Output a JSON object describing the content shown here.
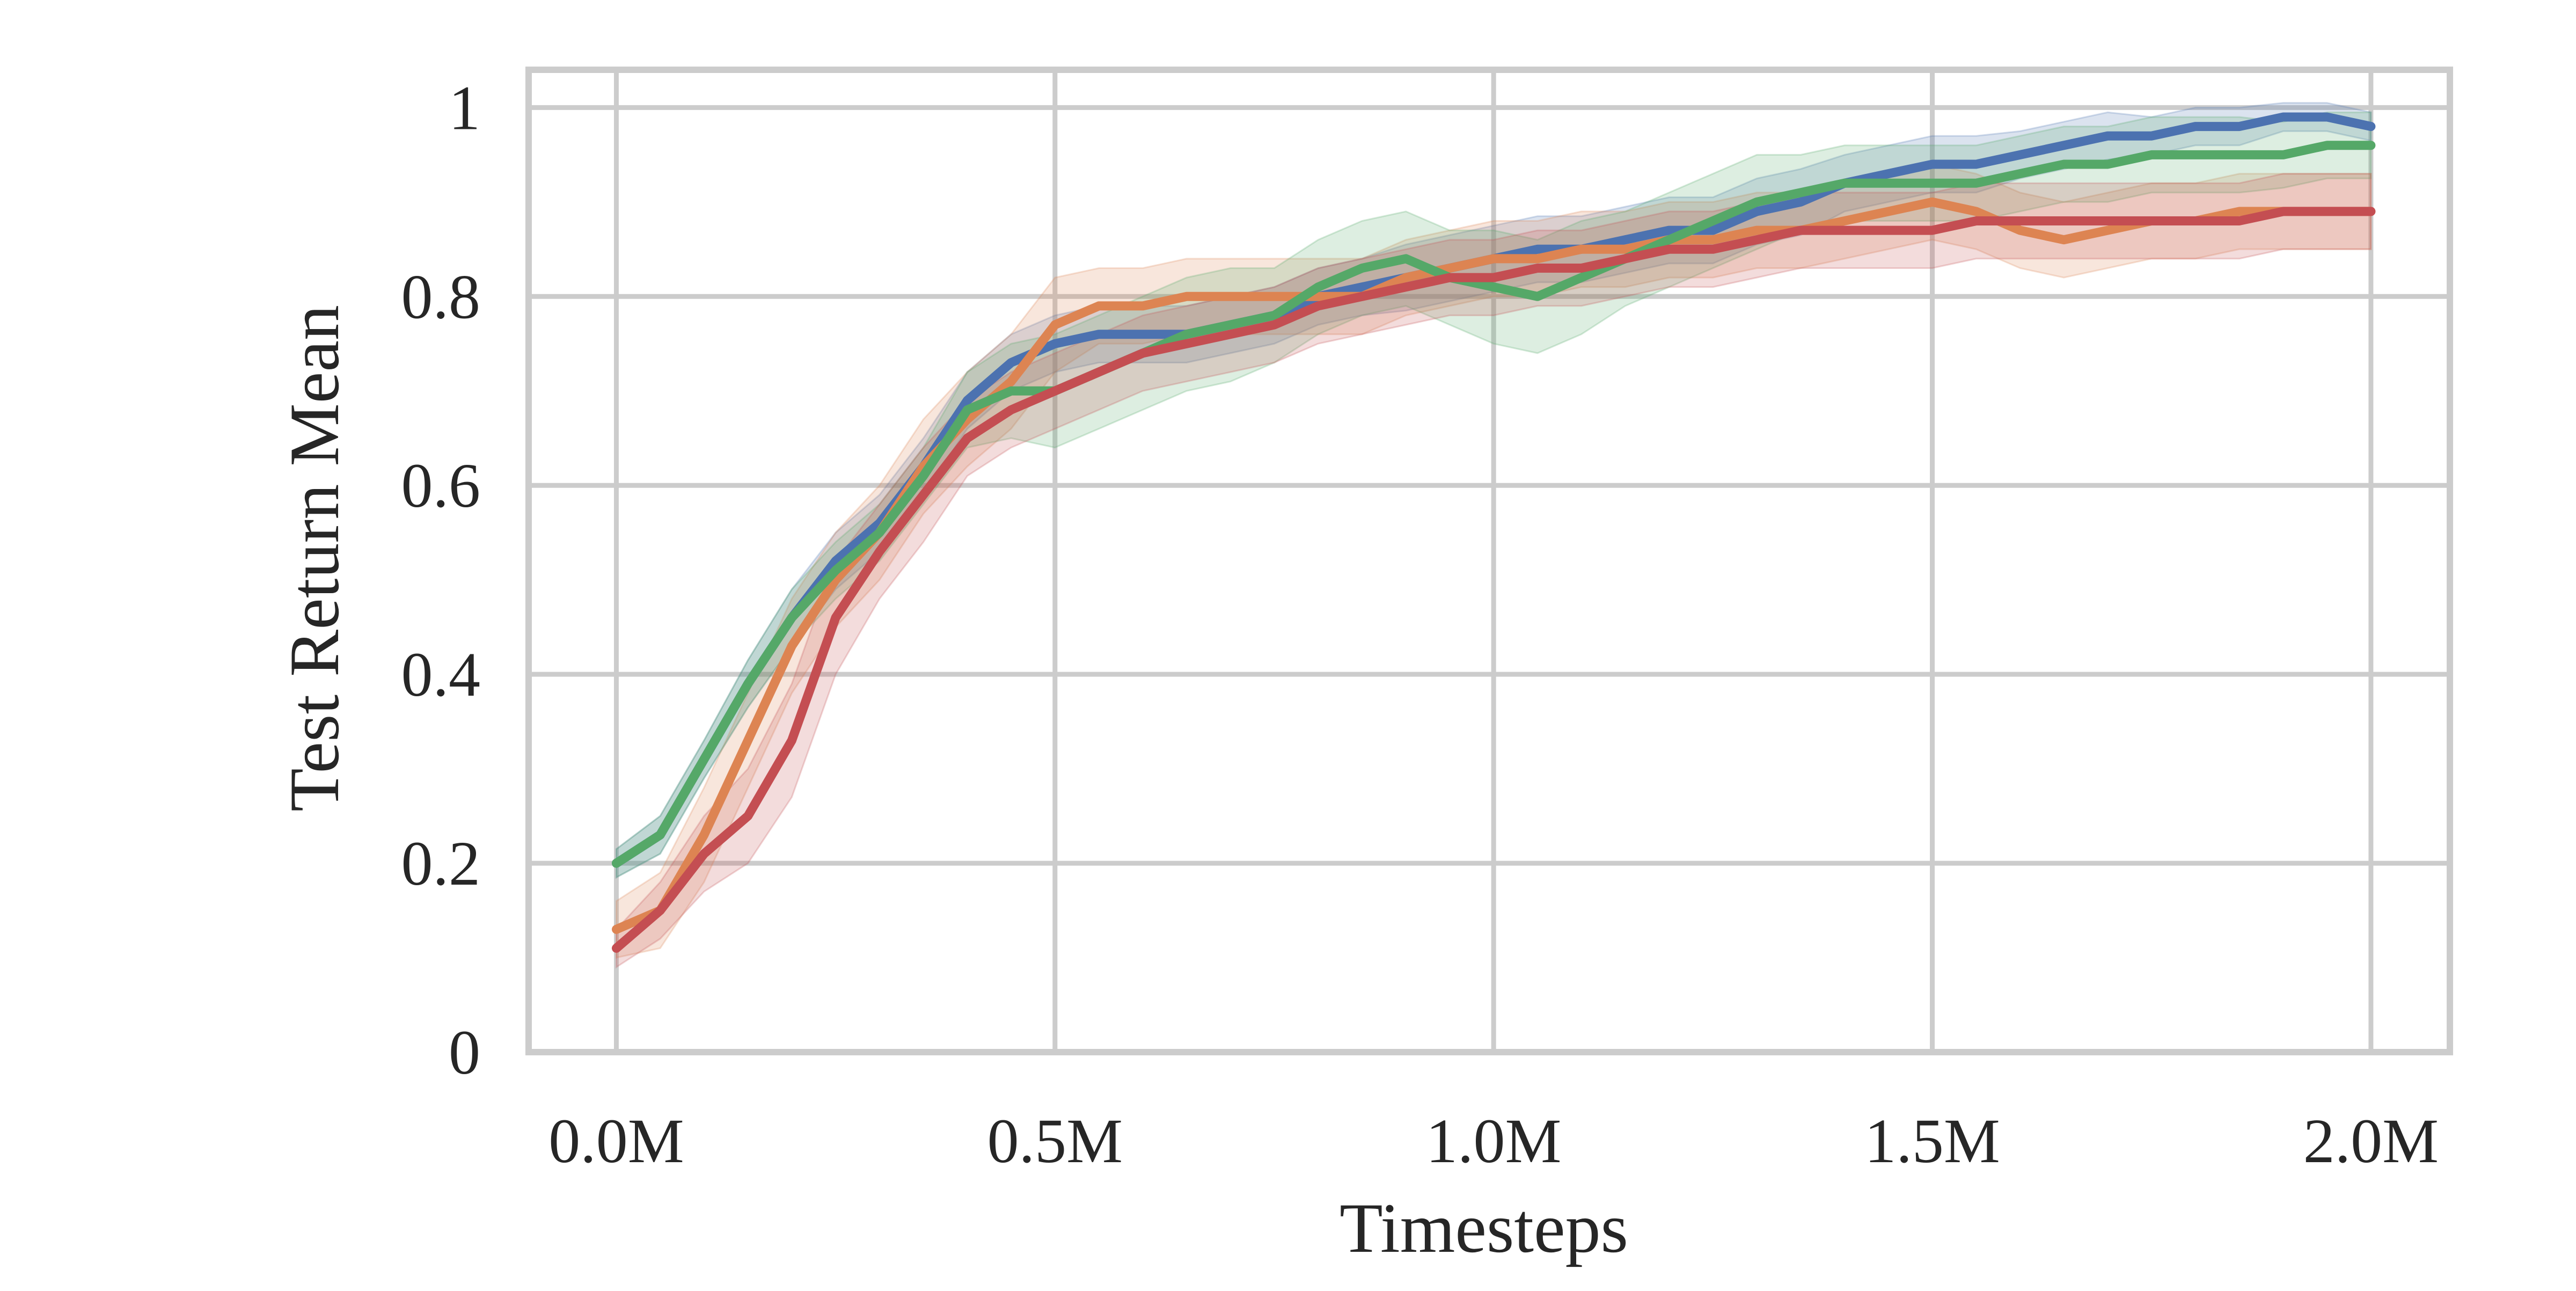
{
  "chart_data": {
    "type": "line",
    "title": "",
    "xlabel": "Timesteps",
    "ylabel": "Test Return Mean",
    "xlim": [
      -0.1,
      2.09
    ],
    "ylim": [
      0,
      1.04
    ],
    "x_ticks": [
      0,
      0.5,
      1.0,
      1.5,
      2.0
    ],
    "x_tick_labels": [
      "0.0M",
      "0.5M",
      "1.0M",
      "1.5M",
      "2.0M"
    ],
    "y_ticks": [
      0,
      0.2,
      0.4,
      0.6,
      0.8,
      1.0
    ],
    "y_tick_labels": [
      "0",
      "0.2",
      "0.4",
      "0.6",
      "0.8",
      "1"
    ],
    "grid": true,
    "legend": "none",
    "colors": {
      "blue": "#4c72b0",
      "orange": "#dd8452",
      "green": "#55a868",
      "red": "#c44e52",
      "grid": "#cccccc",
      "frame": "#cccccc"
    },
    "series": [
      {
        "color": "blue",
        "x": [
          0,
          0.05,
          0.1,
          0.15,
          0.2,
          0.25,
          0.3,
          0.35,
          0.4,
          0.45,
          0.5,
          0.55,
          0.6,
          0.65,
          0.7,
          0.75,
          0.8,
          0.85,
          0.9,
          0.95,
          1.0,
          1.05,
          1.1,
          1.15,
          1.2,
          1.25,
          1.3,
          1.35,
          1.4,
          1.45,
          1.5,
          1.55,
          1.6,
          1.65,
          1.7,
          1.75,
          1.8,
          1.85,
          1.9,
          1.95,
          2.0
        ],
        "y": [
          0.2,
          0.23,
          0.31,
          0.39,
          0.46,
          0.52,
          0.56,
          0.62,
          0.69,
          0.73,
          0.75,
          0.76,
          0.76,
          0.76,
          0.77,
          0.78,
          0.8,
          0.81,
          0.82,
          0.83,
          0.84,
          0.85,
          0.85,
          0.86,
          0.87,
          0.87,
          0.89,
          0.9,
          0.92,
          0.93,
          0.94,
          0.94,
          0.95,
          0.96,
          0.97,
          0.97,
          0.98,
          0.98,
          0.99,
          0.99,
          0.98
        ],
        "band": [
          0.015,
          0.02,
          0.02,
          0.025,
          0.03,
          0.03,
          0.03,
          0.03,
          0.03,
          0.03,
          0.03,
          0.03,
          0.03,
          0.03,
          0.03,
          0.03,
          0.03,
          0.03,
          0.035,
          0.035,
          0.035,
          0.035,
          0.035,
          0.035,
          0.035,
          0.035,
          0.035,
          0.035,
          0.03,
          0.03,
          0.03,
          0.03,
          0.025,
          0.025,
          0.025,
          0.02,
          0.02,
          0.02,
          0.015,
          0.015,
          0.015
        ]
      },
      {
        "color": "orange",
        "x": [
          0,
          0.05,
          0.1,
          0.15,
          0.2,
          0.25,
          0.3,
          0.35,
          0.4,
          0.45,
          0.5,
          0.55,
          0.6,
          0.65,
          0.7,
          0.75,
          0.8,
          0.85,
          0.9,
          0.95,
          1.0,
          1.05,
          1.1,
          1.15,
          1.2,
          1.25,
          1.3,
          1.35,
          1.4,
          1.45,
          1.5,
          1.55,
          1.6,
          1.65,
          1.7,
          1.75,
          1.8,
          1.85,
          1.9,
          1.95,
          2.0
        ],
        "y": [
          0.13,
          0.15,
          0.23,
          0.33,
          0.43,
          0.5,
          0.55,
          0.62,
          0.67,
          0.71,
          0.77,
          0.79,
          0.79,
          0.8,
          0.8,
          0.8,
          0.8,
          0.8,
          0.82,
          0.83,
          0.84,
          0.84,
          0.85,
          0.85,
          0.86,
          0.86,
          0.87,
          0.87,
          0.88,
          0.89,
          0.9,
          0.89,
          0.87,
          0.86,
          0.87,
          0.88,
          0.88,
          0.89,
          0.89,
          0.89,
          0.89
        ],
        "band": [
          0.03,
          0.04,
          0.05,
          0.05,
          0.05,
          0.05,
          0.05,
          0.05,
          0.05,
          0.05,
          0.05,
          0.04,
          0.04,
          0.04,
          0.04,
          0.04,
          0.04,
          0.04,
          0.04,
          0.04,
          0.04,
          0.04,
          0.04,
          0.04,
          0.04,
          0.04,
          0.04,
          0.04,
          0.04,
          0.04,
          0.04,
          0.04,
          0.04,
          0.04,
          0.04,
          0.04,
          0.04,
          0.04,
          0.04,
          0.04,
          0.04
        ]
      },
      {
        "color": "green",
        "x": [
          0,
          0.05,
          0.1,
          0.15,
          0.2,
          0.25,
          0.3,
          0.35,
          0.4,
          0.45,
          0.5,
          0.55,
          0.6,
          0.65,
          0.7,
          0.75,
          0.8,
          0.85,
          0.9,
          0.95,
          1.0,
          1.05,
          1.1,
          1.15,
          1.2,
          1.25,
          1.3,
          1.35,
          1.4,
          1.45,
          1.5,
          1.55,
          1.6,
          1.65,
          1.7,
          1.75,
          1.8,
          1.85,
          1.9,
          1.95,
          2.0
        ],
        "y": [
          0.2,
          0.23,
          0.31,
          0.39,
          0.46,
          0.51,
          0.55,
          0.61,
          0.68,
          0.7,
          0.7,
          0.72,
          0.74,
          0.76,
          0.77,
          0.78,
          0.81,
          0.83,
          0.84,
          0.82,
          0.81,
          0.8,
          0.82,
          0.84,
          0.86,
          0.88,
          0.9,
          0.91,
          0.92,
          0.92,
          0.92,
          0.92,
          0.93,
          0.94,
          0.94,
          0.95,
          0.95,
          0.95,
          0.95,
          0.96,
          0.96
        ],
        "band": [
          0.015,
          0.02,
          0.02,
          0.025,
          0.03,
          0.03,
          0.03,
          0.03,
          0.04,
          0.05,
          0.06,
          0.06,
          0.06,
          0.06,
          0.06,
          0.05,
          0.05,
          0.05,
          0.05,
          0.05,
          0.06,
          0.06,
          0.06,
          0.05,
          0.05,
          0.05,
          0.05,
          0.04,
          0.04,
          0.04,
          0.04,
          0.04,
          0.04,
          0.04,
          0.04,
          0.04,
          0.04,
          0.04,
          0.035,
          0.035,
          0.035
        ]
      },
      {
        "color": "red",
        "x": [
          0,
          0.05,
          0.1,
          0.15,
          0.2,
          0.25,
          0.3,
          0.35,
          0.4,
          0.45,
          0.5,
          0.55,
          0.6,
          0.65,
          0.7,
          0.75,
          0.8,
          0.85,
          0.9,
          0.95,
          1.0,
          1.05,
          1.1,
          1.15,
          1.2,
          1.25,
          1.3,
          1.35,
          1.4,
          1.45,
          1.5,
          1.55,
          1.6,
          1.65,
          1.7,
          1.75,
          1.8,
          1.85,
          1.9,
          1.95,
          2.0
        ],
        "y": [
          0.11,
          0.15,
          0.21,
          0.25,
          0.33,
          0.46,
          0.53,
          0.59,
          0.65,
          0.68,
          0.7,
          0.72,
          0.74,
          0.75,
          0.76,
          0.77,
          0.79,
          0.8,
          0.81,
          0.82,
          0.82,
          0.83,
          0.83,
          0.84,
          0.85,
          0.85,
          0.86,
          0.87,
          0.87,
          0.87,
          0.87,
          0.88,
          0.88,
          0.88,
          0.88,
          0.88,
          0.88,
          0.88,
          0.89,
          0.89,
          0.89
        ],
        "band": [
          0.02,
          0.03,
          0.04,
          0.05,
          0.06,
          0.06,
          0.05,
          0.05,
          0.04,
          0.04,
          0.04,
          0.04,
          0.04,
          0.04,
          0.04,
          0.04,
          0.04,
          0.04,
          0.04,
          0.04,
          0.04,
          0.04,
          0.04,
          0.04,
          0.04,
          0.04,
          0.04,
          0.04,
          0.04,
          0.04,
          0.04,
          0.04,
          0.04,
          0.04,
          0.04,
          0.04,
          0.04,
          0.04,
          0.04,
          0.04,
          0.04
        ]
      }
    ]
  }
}
